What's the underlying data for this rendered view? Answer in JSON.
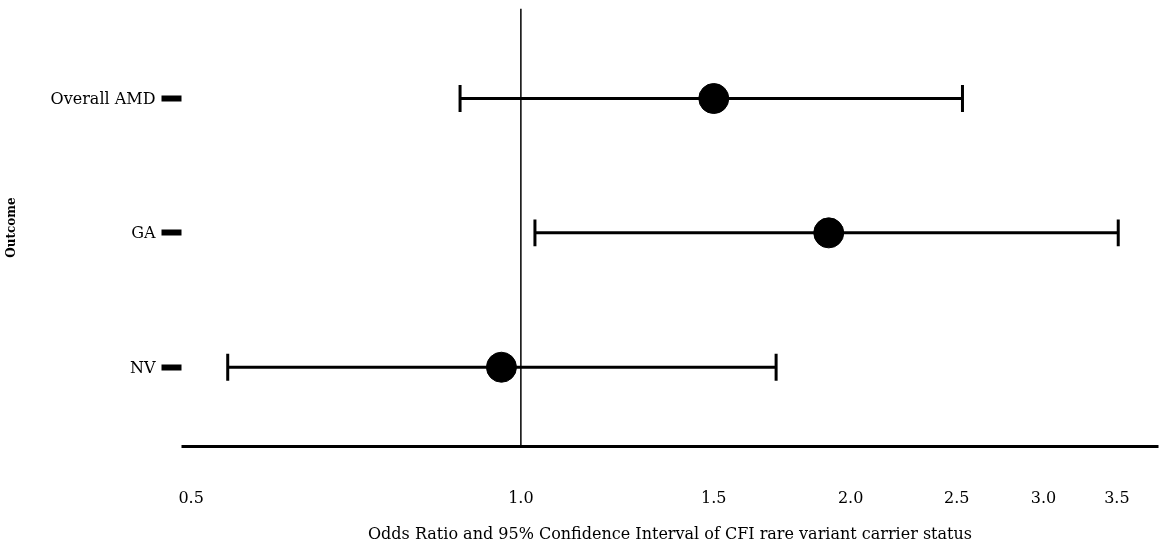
{
  "chart_data": {
    "type": "scatter",
    "orientation": "horizontal",
    "categories": [
      "Overall AMD",
      "GA",
      "NV"
    ],
    "values": [
      1.5,
      1.91,
      0.96
    ],
    "errors": [
      [
        0.88,
        2.53
      ],
      [
        1.03,
        3.51
      ],
      [
        0.54,
        1.71
      ]
    ],
    "color": "#000000",
    "marker": "circle",
    "xlabel": "Odds Ratio and 95% Confidence Interval of CFI rare variant carrier status",
    "ylabel": "Outcome",
    "log": "x",
    "xlim": [
      0.49,
      3.82
    ],
    "xticks": [
      0.5,
      {
        "value": 1,
        "label": "1.0"
      },
      1.5,
      {
        "value": 2,
        "label": "2.0"
      },
      2.5,
      {
        "value": 3,
        "label": "3.0"
      },
      3.5
    ],
    "ref_lines": [
      {
        "axis": "x",
        "value": 1,
        "color": "#000000"
      }
    ],
    "grid": false
  }
}
